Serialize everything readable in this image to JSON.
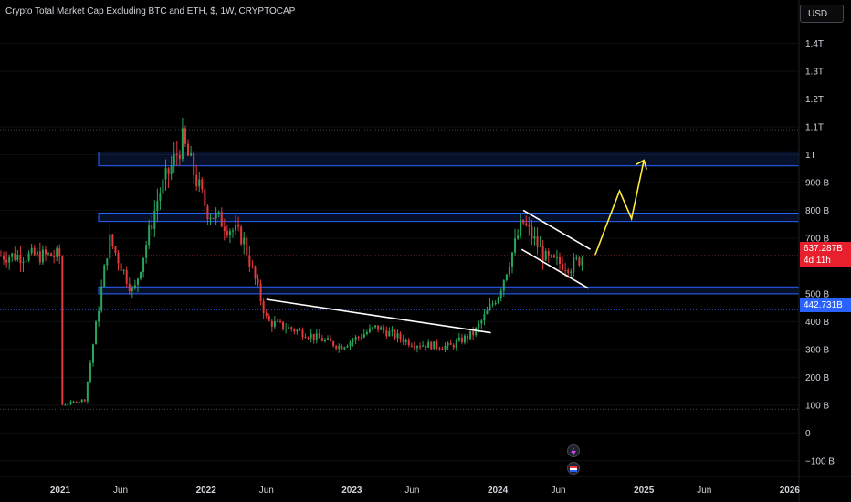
{
  "header": {
    "title": "Crypto Total Market Cap Excluding BTC and ETH, $, 1W, CRYPTOCAP",
    "currency": "USD"
  },
  "price_scale": {
    "labels": [
      "1.4T",
      "1.3T",
      "1.2T",
      "1.1T",
      "1T",
      "900 B",
      "800 B",
      "700 B",
      "500 B",
      "400 B",
      "300 B",
      "200 B",
      "100 B",
      "0",
      "−100 B"
    ]
  },
  "time_scale": {
    "labels": [
      "2021",
      "Jun",
      "2022",
      "Jun",
      "2023",
      "Jun",
      "2024",
      "Jun",
      "2025",
      "Jun",
      "2026"
    ]
  },
  "last_price": {
    "value": "637.287B",
    "countdown": "4d 11h",
    "color": "#f23645"
  },
  "marker_price": {
    "value": "442.731B",
    "color": "#2962ff"
  },
  "colors": {
    "up": "#26a65b",
    "down": "#e03a3a",
    "zone": "#2962ff",
    "projection": "#ffeb3b",
    "trendline": "#ffffff"
  },
  "icons": [
    "bolt-icon",
    "flag-icon"
  ],
  "chart_data": {
    "type": "candlestick",
    "interval": "1W",
    "ylim": [
      "-100 B",
      "1.4T"
    ],
    "zones": [
      [
        "960 B",
        "1.01T"
      ],
      [
        "760 B",
        "790 B"
      ],
      [
        "500 B",
        "525 B"
      ]
    ],
    "levels": [
      "1.09T",
      "637.287B",
      "442.731B",
      "85 B"
    ],
    "path_points": [
      [
        "2021-01",
        100
      ],
      [
        "2021-03",
        120
      ],
      [
        "2021-05",
        700
      ],
      [
        "2021-07",
        500
      ],
      [
        "2021-09",
        850
      ],
      [
        "2021-11",
        1050
      ],
      [
        "2022-01",
        800
      ],
      [
        "2022-04",
        700
      ],
      [
        "2022-06",
        400
      ],
      [
        "2022-09",
        360
      ],
      [
        "2022-12",
        310
      ],
      [
        "2023-03",
        380
      ],
      [
        "2023-06",
        320
      ],
      [
        "2023-09",
        310
      ],
      [
        "2023-11",
        360
      ],
      [
        "2024-01",
        500
      ],
      [
        "2024-03",
        760
      ],
      [
        "2024-05",
        620
      ],
      [
        "2024-07",
        600
      ],
      [
        "2024-08",
        637
      ]
    ],
    "projection": [
      [
        "2024-09",
        640
      ],
      [
        "2024-11",
        870
      ],
      [
        "2024-12",
        770
      ],
      [
        "2025-01",
        980
      ]
    ]
  }
}
